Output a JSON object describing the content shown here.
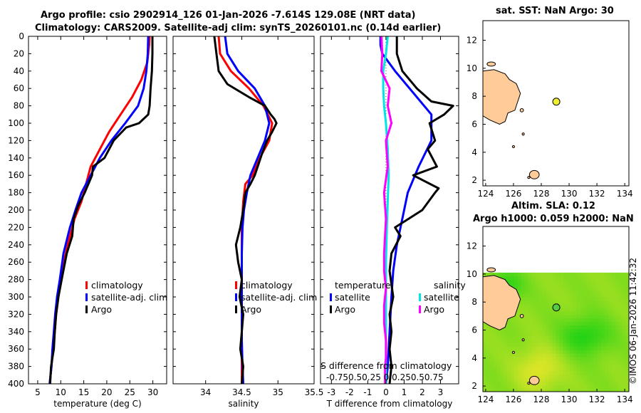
{
  "titles": {
    "line1": "Argo profile: csio 2902914_126 01-Jan-2026 -7.614S 129.08E (NRT data)",
    "line2": "Climatology: CARS2009. Satellite-adj clim: synTS_20260101.nc (0.14d earlier)",
    "map1": "sat. SST: NaN Argo: 30",
    "map2a": "Altim. SLA: 0.12",
    "map2b": "Argo h1000: 0.059 h2000: NaN",
    "side": "©IMOS 06-Jan-2026 11:42:32"
  },
  "colors": {
    "climatology": "#ff0000",
    "satellite": "#0000ff",
    "argo": "#000000",
    "sal_satellite": "#00e5e5",
    "sal_argo": "#ff00ff",
    "land": "#ffcc99",
    "float": "#eeee33"
  },
  "chart_data": [
    {
      "type": "line",
      "id": "temperature",
      "xlabel": "temperature (deg C)",
      "xlim": [
        3,
        33
      ],
      "ylim": [
        0,
        400
      ],
      "xticks": [
        "5",
        "10",
        "15",
        "20",
        "25",
        "30"
      ],
      "yticks": [
        "0",
        "20",
        "40",
        "60",
        "80",
        "100",
        "120",
        "140",
        "160",
        "180",
        "200",
        "220",
        "240",
        "260",
        "280",
        "300",
        "320",
        "340",
        "360",
        "380",
        "400"
      ],
      "legend": [
        "climatology",
        "satellite-adj. clim",
        "Argo"
      ],
      "series": [
        {
          "name": "climatology",
          "color": "#ff0000",
          "x": [
            29.3,
            29.2,
            28.8,
            27.5,
            25.5,
            23,
            20.5,
            18.5,
            16.5,
            15.5,
            14.5,
            13,
            11.5,
            10.3,
            9.5,
            9,
            8.7,
            8.3,
            8.0,
            7.8,
            7.6
          ],
          "y": [
            0,
            10,
            30,
            50,
            70,
            90,
            110,
            130,
            150,
            170,
            190,
            210,
            240,
            270,
            300,
            320,
            340,
            360,
            380,
            390,
            400
          ]
        },
        {
          "name": "satellite-adj. clim",
          "color": "#0000ff",
          "x": [
            29.0,
            28.9,
            28.6,
            28.0,
            26.8,
            24,
            21,
            18.5,
            16.5,
            14.5,
            13.2,
            12,
            10.6,
            9.8,
            9.2,
            8.8,
            8.5,
            8.2,
            8.0,
            7.8,
            7.6
          ],
          "y": [
            0,
            20,
            40,
            60,
            80,
            100,
            120,
            140,
            160,
            180,
            200,
            220,
            250,
            280,
            300,
            320,
            340,
            360,
            380,
            390,
            400
          ]
        },
        {
          "name": "Argo",
          "color": "#000000",
          "x": [
            29.9,
            29.9,
            29.8,
            29.5,
            29.3,
            29.0,
            27.0,
            24.2,
            21.5,
            19.5,
            17.0,
            16.8,
            16.0,
            15.2,
            13.8,
            12.8,
            12.5,
            11.3,
            10.2,
            9.5,
            9.0,
            8.7,
            8.5,
            8.2,
            7.9,
            7.8,
            7.7
          ],
          "y": [
            0,
            20,
            40,
            60,
            80,
            90,
            100,
            105,
            120,
            140,
            150,
            160,
            170,
            180,
            195,
            210,
            230,
            250,
            280,
            300,
            320,
            340,
            360,
            370,
            380,
            390,
            400
          ]
        }
      ]
    },
    {
      "type": "line",
      "id": "salinity",
      "xlabel": "salinity",
      "xlim": [
        33.55,
        35.5
      ],
      "ylim": [
        0,
        400
      ],
      "xticks": [
        "34",
        "34.5",
        "35",
        "35.5"
      ],
      "legend": [
        "climatology",
        "satellite-adj. clim",
        "Argo"
      ],
      "series": [
        {
          "name": "climatology",
          "color": "#ff0000",
          "x": [
            34.18,
            34.2,
            34.35,
            34.6,
            34.8,
            34.92,
            34.88,
            34.75,
            34.65,
            34.55,
            34.52,
            34.5,
            34.5,
            34.5,
            34.5,
            34.5,
            34.5,
            34.5,
            34.5
          ],
          "y": [
            0,
            20,
            40,
            60,
            80,
            100,
            120,
            140,
            160,
            170,
            190,
            220,
            250,
            280,
            300,
            320,
            350,
            380,
            400
          ]
        },
        {
          "name": "satellite-adj. clim",
          "color": "#0000ff",
          "x": [
            34.27,
            34.3,
            34.45,
            34.68,
            34.82,
            34.88,
            34.82,
            34.72,
            34.62,
            34.57,
            34.53,
            34.51,
            34.5,
            34.5,
            34.5,
            34.5,
            34.5,
            34.51,
            34.52
          ],
          "y": [
            0,
            20,
            40,
            60,
            80,
            100,
            120,
            140,
            160,
            180,
            200,
            220,
            250,
            280,
            300,
            320,
            350,
            380,
            400
          ]
        },
        {
          "name": "Argo",
          "color": "#000000",
          "x": [
            34.12,
            34.15,
            34.18,
            34.3,
            34.6,
            34.82,
            34.9,
            34.95,
            34.98,
            34.92,
            34.85,
            34.78,
            34.72,
            34.68,
            34.62,
            34.55,
            34.52,
            34.48,
            34.42,
            34.45,
            34.5,
            34.47,
            34.52,
            34.5,
            34.48,
            34.52,
            34.5
          ],
          "y": [
            0,
            20,
            40,
            55,
            70,
            80,
            90,
            95,
            100,
            110,
            120,
            135,
            150,
            160,
            170,
            180,
            200,
            220,
            240,
            260,
            280,
            300,
            320,
            340,
            360,
            380,
            400
          ]
        }
      ]
    },
    {
      "type": "line",
      "id": "differences",
      "xlabel": "T difference from climatology",
      "xlim": [
        -3.6,
        4
      ],
      "ylim": [
        0,
        400
      ],
      "xticks": [
        "-3",
        "-2",
        "-1",
        "0",
        "1",
        "2",
        "3"
      ],
      "top_axis_label": "S difference from climatology",
      "top_ticks": [
        "-0.75",
        "-0.5",
        "0",
        "0.25",
        "0.5",
        "0.75"
      ],
      "top_ticks_text": "-0.750.50.25 0 0.250.50.75",
      "legend_headers": [
        "temperature",
        "salinity"
      ],
      "legend_left": [
        "satellite",
        "Argo"
      ],
      "legend_right": [
        "satellite",
        "Argo"
      ],
      "series": [
        {
          "name": "T satellite",
          "color": "#0000ff",
          "x": [
            -0.3,
            -0.3,
            -0.2,
            0.5,
            1.3,
            2.5,
            2.5,
            1.8,
            1.2,
            0.9,
            0.6,
            0.4,
            0.3,
            0.2,
            0.1,
            0.0
          ],
          "y": [
            0,
            10,
            20,
            40,
            60,
            90,
            120,
            150,
            180,
            210,
            240,
            270,
            300,
            340,
            380,
            400
          ]
        },
        {
          "name": "T Argo",
          "color": "#000000",
          "x": [
            0.6,
            0.6,
            0.9,
            1.7,
            2.5,
            3.7,
            3.2,
            2.4,
            2.7,
            2.3,
            2.8,
            1.5,
            2.9,
            2.7,
            2.0,
            0.5,
            0.8,
            0.3,
            0.2,
            0.4,
            0.2,
            0.3,
            0.2,
            0.3,
            0.2
          ],
          "y": [
            0,
            20,
            40,
            60,
            75,
            80,
            90,
            100,
            120,
            130,
            150,
            160,
            175,
            180,
            200,
            220,
            230,
            250,
            270,
            300,
            320,
            340,
            360,
            380,
            400
          ]
        },
        {
          "name": "S satellite",
          "color": "#00e5e5",
          "x": [
            0.1,
            0.0,
            -0.15,
            -0.15,
            -0.1,
            0.0,
            0.1,
            0.15,
            0.1,
            0.05,
            0.0,
            0.0,
            0.0,
            0.0
          ],
          "y": [
            0,
            20,
            40,
            60,
            80,
            100,
            130,
            160,
            190,
            220,
            260,
            300,
            340,
            400
          ]
        },
        {
          "name": "S Argo",
          "color": "#ff00ff",
          "x": [
            -0.25,
            -0.2,
            -0.25,
            0.2,
            0.1,
            0.3,
            0.0,
            0.1,
            -0.1,
            0.0,
            -0.05,
            -0.1,
            -0.1,
            0.0,
            -0.1,
            -0.1,
            0.0,
            0.0,
            -0.05,
            -0.05,
            -0.05
          ],
          "y": [
            0,
            20,
            40,
            60,
            80,
            100,
            120,
            150,
            180,
            210,
            230,
            250,
            270,
            290,
            310,
            330,
            350,
            370,
            380,
            390,
            400
          ]
        }
      ]
    },
    {
      "type": "heatmap",
      "id": "sst-map",
      "xlim": [
        123.8,
        134.3
      ],
      "ylim": [
        1.6,
        13.4
      ],
      "xticks": [
        "124",
        "126",
        "128",
        "130",
        "132",
        "134"
      ],
      "yticks": [
        "2",
        "4",
        "6",
        "8",
        "10",
        "12"
      ],
      "float_position": {
        "lon": 129.08,
        "lat": 7.614
      }
    },
    {
      "type": "heatmap",
      "id": "sla-map",
      "xlim": [
        123.8,
        134.3
      ],
      "ylim": [
        1.6,
        13.4
      ],
      "data_lat_max": 10,
      "xticks": [
        "124",
        "126",
        "128",
        "130",
        "132",
        "134"
      ],
      "yticks": [
        "2",
        "4",
        "6",
        "8",
        "10",
        "12"
      ],
      "float_position": {
        "lon": 129.08,
        "lat": 7.614
      }
    }
  ]
}
